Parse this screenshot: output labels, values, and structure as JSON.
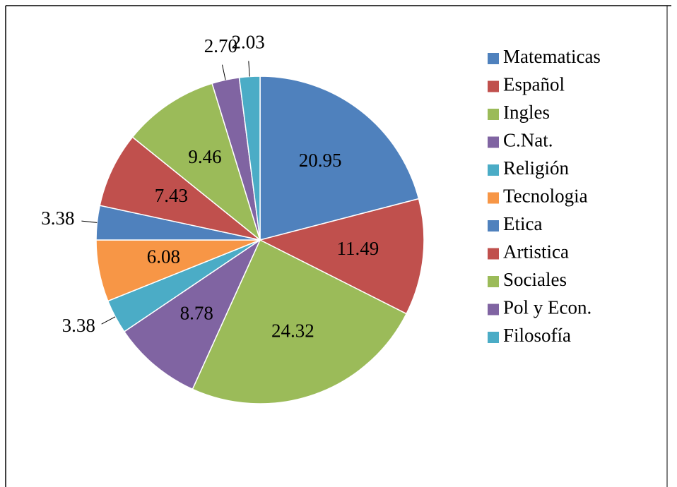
{
  "chart_data": {
    "type": "pie",
    "categories": [
      "Matematicas",
      "Español",
      "Ingles",
      "C.Nat.",
      "Religión",
      "Tecnologia",
      "Etica",
      "Artistica",
      "Sociales",
      "Pol y Econ.",
      "Filosofía"
    ],
    "values": [
      20.95,
      11.49,
      24.32,
      8.78,
      3.38,
      6.08,
      3.38,
      7.43,
      9.46,
      2.7,
      2.03
    ],
    "value_labels": [
      "20.95",
      "11.49",
      "24.32",
      "8.78",
      "3.38",
      "6.08",
      "3.38",
      "7.43",
      "9.46",
      "2.70",
      "2.03"
    ],
    "colors": [
      "#4f81bd",
      "#c0504d",
      "#9bbb59",
      "#8064a2",
      "#4bacc6",
      "#f79646",
      "#4f81bd",
      "#c0504d",
      "#9bbb59",
      "#8064a2",
      "#4bacc6"
    ]
  }
}
